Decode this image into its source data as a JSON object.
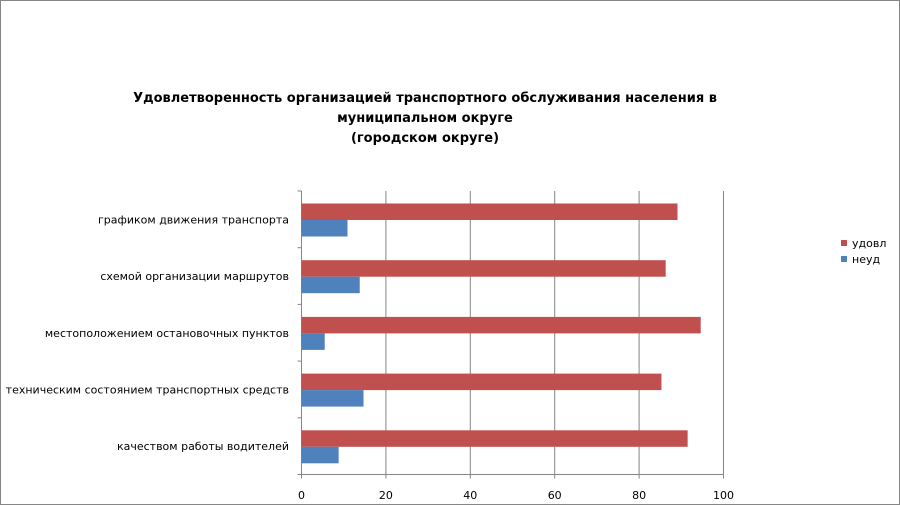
{
  "chart_data": {
    "type": "bar",
    "orientation": "horizontal",
    "title": "Удовлетворенность организацией транспортного обслуживания населения в муниципальном округе (городском округе)",
    "title_lines": [
      "Удовлетворенность организацией транспортного обслуживания населения в муниципальном округе",
      "(городском округе)"
    ],
    "categories": [
      "графиком движения транспорта",
      "схемой организации маршрутов",
      "местоположением остановочных пунктов",
      "техническим состоянием транспортных средств",
      "качеством работы водителей"
    ],
    "series": [
      {
        "name": "удовл",
        "color": "#c0504d",
        "values": [
          89.1,
          86.3,
          94.6,
          85.3,
          91.5
        ]
      },
      {
        "name": "неуд",
        "color": "#4f81bd",
        "values": [
          10.9,
          13.8,
          5.5,
          14.7,
          8.8
        ]
      }
    ],
    "xlim": [
      0,
      100
    ],
    "xticks": [
      "0",
      "20",
      "40",
      "60",
      "80",
      "100"
    ],
    "xlabel": "",
    "ylabel": "",
    "grid": "vertical",
    "legend": "right"
  }
}
